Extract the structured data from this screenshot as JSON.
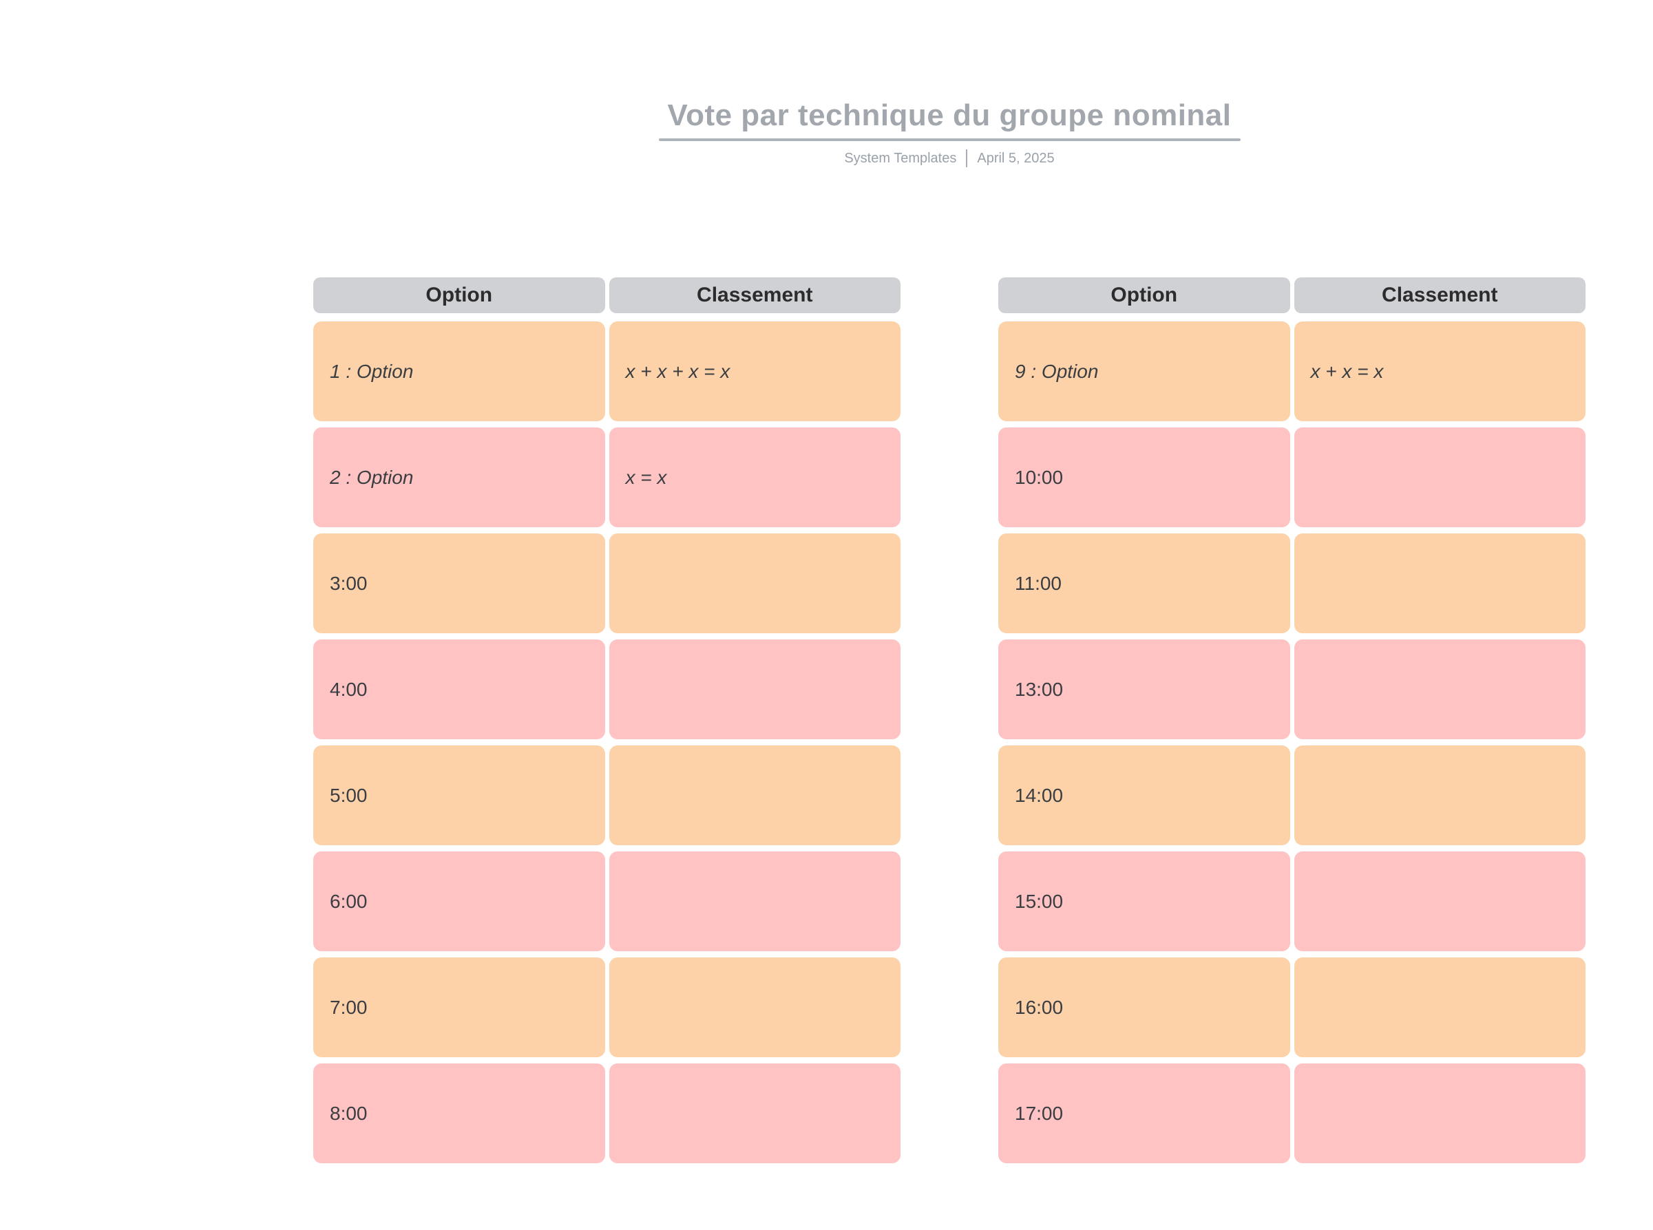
{
  "document": {
    "title": "Vote par technique du groupe nominal",
    "author": "System Templates",
    "date": "April 5, 2025"
  },
  "tables": [
    {
      "headers": {
        "option": "Option",
        "classement": "Classement"
      },
      "rows": [
        {
          "option": "1 : Option",
          "classement": "x + x + x = x",
          "placeholder": true
        },
        {
          "option": "2 : Option",
          "classement": "x = x",
          "placeholder": true
        },
        {
          "option": "3:00",
          "classement": "",
          "placeholder": false
        },
        {
          "option": "4:00",
          "classement": "",
          "placeholder": false
        },
        {
          "option": "5:00",
          "classement": "",
          "placeholder": false
        },
        {
          "option": "6:00",
          "classement": "",
          "placeholder": false
        },
        {
          "option": "7:00",
          "classement": "",
          "placeholder": false
        },
        {
          "option": "8:00",
          "classement": "",
          "placeholder": false
        }
      ]
    },
    {
      "headers": {
        "option": "Option",
        "classement": "Classement"
      },
      "rows": [
        {
          "option": "9 : Option",
          "classement": "x + x = x",
          "placeholder": true
        },
        {
          "option": "10:00",
          "classement": "",
          "placeholder": false
        },
        {
          "option": "11:00",
          "classement": "",
          "placeholder": false
        },
        {
          "option": "13:00",
          "classement": "",
          "placeholder": false
        },
        {
          "option": "14:00",
          "classement": "",
          "placeholder": false
        },
        {
          "option": "15:00",
          "classement": "",
          "placeholder": false
        },
        {
          "option": "16:00",
          "classement": "",
          "placeholder": false
        },
        {
          "option": "17:00",
          "classement": "",
          "placeholder": false
        }
      ]
    }
  ],
  "colors": {
    "row_peach": "#fdd2a8",
    "row_pink": "#fec3c2",
    "header_gray": "#d0d1d4",
    "title_gray": "#a2a7ae",
    "rule_gray": "#aeb4bc",
    "meta_gray": "#99a1aa",
    "cell_text": "#3a3d41",
    "header_text": "#2c2c2e"
  }
}
